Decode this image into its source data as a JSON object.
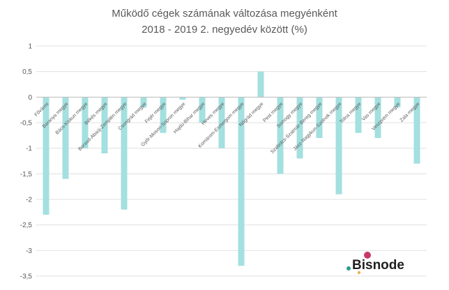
{
  "chart_data": {
    "type": "bar",
    "title": "Működő cégek számának változása megyénként",
    "subtitle": "2018 - 2019 2. negyedév között (%)",
    "xlabel": "",
    "ylabel": "",
    "ylim": [
      -3.5,
      1
    ],
    "yticks": [
      "1",
      "0,5",
      "0",
      "-0,5",
      "-1",
      "-1,5",
      "-2",
      "-2,5",
      "-3",
      "-3,5"
    ],
    "grid": true,
    "legend": "none",
    "categories": [
      "Főváros",
      "Baranya megye",
      "Bács-Kiskun megye",
      "Békés megye",
      "Borsod-Abaúj-Zemplén megye",
      "Csongrád megye",
      "Fejér megye",
      "Győr-Moson-Sopron megye",
      "Hajdú-Bihar megye",
      "Heves megye",
      "Komárom-Esztergom megye",
      "Nógrád megye",
      "Pest megye",
      "Somogy megye",
      "Szabolcs-Szatmár-Bereg megye",
      "Jász-Nagykun-Szolnok megye",
      "Tolna megye",
      "Vas megye",
      "Veszprém megye",
      "Zala megye"
    ],
    "values": [
      -2.3,
      -1.6,
      -1.0,
      -1.1,
      -2.2,
      -0.2,
      -0.7,
      -0.05,
      -0.5,
      -1.0,
      -3.3,
      0.5,
      -1.5,
      -1.2,
      -0.8,
      -1.9,
      -0.7,
      -0.8,
      -0.2,
      -1.3
    ],
    "bar_color": "#a3e0df"
  },
  "logo": {
    "text": "Bisnode",
    "dot_colors": [
      "#c8386a",
      "#2a9d8f",
      "#e9b44c"
    ]
  }
}
